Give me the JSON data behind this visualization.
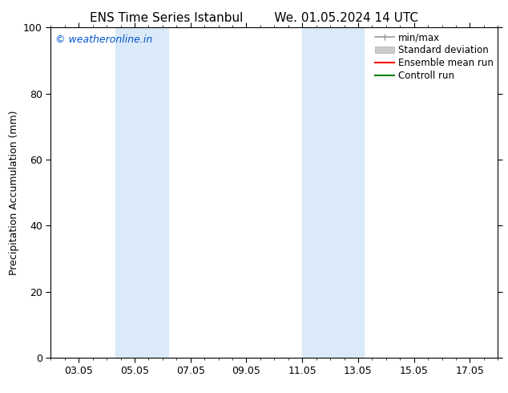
{
  "title": "ENS Time Series Istanbul",
  "title2": "We. 01.05.2024 14 UTC",
  "ylabel": "Precipitation Accumulation (mm)",
  "ylim": [
    0,
    100
  ],
  "yticks": [
    0,
    20,
    40,
    60,
    80,
    100
  ],
  "x_tick_labels": [
    "03.05",
    "05.05",
    "07.05",
    "09.05",
    "11.05",
    "13.05",
    "15.05",
    "17.05"
  ],
  "x_tick_positions": [
    3,
    5,
    7,
    9,
    11,
    13,
    15,
    17
  ],
  "xlim": [
    2,
    18
  ],
  "shaded_regions": [
    {
      "x_start": 4.3,
      "x_end": 5.0,
      "color": "#daeaf8"
    },
    {
      "x_start": 5.0,
      "x_end": 6.2,
      "color": "#daeaf8"
    },
    {
      "x_start": 11.0,
      "x_end": 11.8,
      "color": "#daeaf8"
    },
    {
      "x_start": 11.8,
      "x_end": 13.2,
      "color": "#daeaf8"
    }
  ],
  "legend_entries": [
    {
      "label": "min/max",
      "style": "minmax"
    },
    {
      "label": "Standard deviation",
      "style": "stddev"
    },
    {
      "label": "Ensemble mean run",
      "color": "#ff0000",
      "style": "line"
    },
    {
      "label": "Controll run",
      "color": "#008000",
      "style": "line"
    }
  ],
  "watermark_text": "© weatheronline.in",
  "watermark_color": "#0055cc",
  "background_color": "#ffffff",
  "font_family": "DejaVu Sans",
  "font_size_title": 11,
  "font_size_axes": 9,
  "font_size_legend": 8.5,
  "font_size_watermark": 9,
  "font_size_ticks": 9
}
